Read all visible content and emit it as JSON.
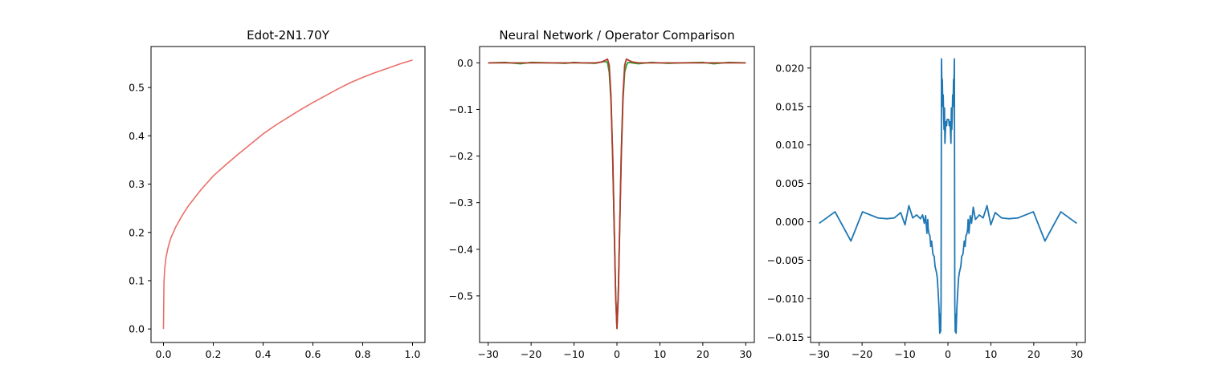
{
  "chart_data": [
    {
      "type": "line",
      "title": "Edot-2N1.70Y",
      "xlabel": "",
      "ylabel": "",
      "xlim": [
        -0.05,
        1.05
      ],
      "ylim": [
        -0.028,
        0.585
      ],
      "xticks": [
        0.0,
        0.2,
        0.4,
        0.6,
        0.8,
        1.0
      ],
      "xtick_labels": [
        "0.0",
        "0.2",
        "0.4",
        "0.6",
        "0.8",
        "1.0"
      ],
      "yticks": [
        0.0,
        0.1,
        0.2,
        0.3,
        0.4,
        0.5
      ],
      "ytick_labels": [
        "0.0",
        "0.1",
        "0.2",
        "0.3",
        "0.4",
        "0.5"
      ],
      "grid": false,
      "series": [
        {
          "color": "#e8605a",
          "x": [
            0.0,
            0.002,
            0.005,
            0.01,
            0.02,
            0.03,
            0.05,
            0.075,
            0.1,
            0.15,
            0.2,
            0.25,
            0.3,
            0.35,
            0.4,
            0.45,
            0.5,
            0.55,
            0.6,
            0.65,
            0.7,
            0.75,
            0.8,
            0.85,
            0.9,
            0.95,
            1.0
          ],
          "y": [
            0.0,
            0.098,
            0.125,
            0.148,
            0.172,
            0.189,
            0.212,
            0.235,
            0.255,
            0.288,
            0.317,
            0.34,
            0.362,
            0.383,
            0.404,
            0.422,
            0.438,
            0.454,
            0.469,
            0.483,
            0.497,
            0.51,
            0.521,
            0.531,
            0.54,
            0.549,
            0.557
          ]
        }
      ]
    },
    {
      "type": "line",
      "title": "Neural Network / Operator Comparison",
      "xlabel": "",
      "ylabel": "",
      "xlim": [
        -32,
        32
      ],
      "ylim": [
        -0.6,
        0.035
      ],
      "xticks": [
        -30,
        -20,
        -10,
        0,
        10,
        20,
        30
      ],
      "xtick_labels": [
        "−30",
        "−20",
        "−10",
        "0",
        "10",
        "20",
        "30"
      ],
      "yticks": [
        0.0,
        -0.1,
        -0.2,
        -0.3,
        -0.4,
        -0.5
      ],
      "ytick_labels": [
        "0.0",
        "−0.1",
        "−0.2",
        "−0.3",
        "−0.4",
        "−0.5"
      ],
      "grid": false,
      "series": [
        {
          "color": "#2ca02c",
          "x": [
            -30,
            -26,
            -22.5,
            -20,
            -15,
            -12,
            -10,
            -8,
            -5,
            -3.5,
            -2.6,
            -2.2,
            -1.8,
            -1.4,
            -1.0,
            -0.6,
            -0.3,
            0,
            0.3,
            0.6,
            1.0,
            1.4,
            1.8,
            2.2,
            2.6,
            3.5,
            5,
            8,
            10,
            12,
            15,
            20,
            22.5,
            26,
            30
          ],
          "y": [
            0.0,
            0.001,
            -0.002,
            0.001,
            0.0,
            -0.001,
            0.001,
            0.0,
            -0.001,
            0.002,
            0.003,
            0.0,
            -0.02,
            -0.08,
            -0.2,
            -0.37,
            -0.5,
            -0.568,
            -0.5,
            -0.37,
            -0.2,
            -0.08,
            -0.02,
            -0.005,
            0.001,
            0.0,
            -0.002,
            0.001,
            0.0,
            -0.001,
            0.0,
            0.001,
            -0.002,
            0.001,
            0.0
          ]
        },
        {
          "color": "#b03a2e",
          "x": [
            -30,
            -26,
            -22.5,
            -20,
            -15,
            -12,
            -10,
            -8,
            -5,
            -3.5,
            -2.6,
            -2.2,
            -1.8,
            -1.4,
            -1.0,
            -0.6,
            -0.3,
            0,
            0.3,
            0.6,
            1.0,
            1.4,
            1.8,
            2.2,
            2.6,
            3.5,
            5,
            8,
            10,
            12,
            15,
            20,
            22.5,
            26,
            30
          ],
          "y": [
            0.0,
            0.0,
            0.0,
            0.0,
            0.0,
            0.0,
            0.0,
            0.0,
            0.0,
            0.002,
            0.006,
            0.008,
            -0.005,
            -0.07,
            -0.2,
            -0.37,
            -0.5,
            -0.57,
            -0.5,
            -0.37,
            -0.2,
            -0.07,
            -0.005,
            0.008,
            0.006,
            0.002,
            0.0,
            0.0,
            0.0,
            0.0,
            0.0,
            0.0,
            0.0,
            0.0,
            0.0
          ]
        }
      ]
    },
    {
      "type": "line",
      "title": "",
      "xlabel": "",
      "ylabel": "",
      "xlim": [
        -32,
        32
      ],
      "ylim": [
        -0.0157,
        0.0228
      ],
      "xticks": [
        -30,
        -20,
        -10,
        0,
        10,
        20,
        30
      ],
      "xtick_labels": [
        "−30",
        "−20",
        "−10",
        "0",
        "10",
        "20",
        "30"
      ],
      "yticks": [
        0.02,
        0.015,
        0.01,
        0.005,
        0.0,
        -0.005,
        -0.01,
        -0.015
      ],
      "ytick_labels": [
        "0.020",
        "0.015",
        "0.010",
        "0.005",
        "0.000",
        "−0.005",
        "−0.010",
        "−0.015"
      ],
      "grid": false,
      "series": [
        {
          "color": "#1f77b4",
          "x": [
            -30,
            -26.3,
            -22.6,
            -19.9,
            -16.3,
            -14.2,
            -12.5,
            -11.0,
            -10.0,
            -9.1,
            -8.2,
            -7.3,
            -6.4,
            -5.9,
            -5.5,
            -5.2,
            -4.9,
            -4.7,
            -4.6,
            -4.4,
            -4.2,
            -4.0,
            -3.8,
            -3.5,
            -3.2,
            -3.0,
            -2.7,
            -2.5,
            -2.3,
            -2.1,
            -1.9,
            -1.8,
            -1.7,
            -1.6,
            -1.5,
            -1.4,
            -1.3,
            -1.2,
            -1.1,
            -1.0,
            -0.9,
            -0.8,
            -0.7,
            -0.5,
            -0.3,
            -0.2,
            0.2,
            0.3,
            0.5,
            0.7,
            0.8,
            0.9,
            1.0,
            1.1,
            1.2,
            1.3,
            1.4,
            1.5,
            1.6,
            1.7,
            1.8,
            1.9,
            2.1,
            2.3,
            2.5,
            2.7,
            3.0,
            3.2,
            3.5,
            3.8,
            4.0,
            4.2,
            4.4,
            4.6,
            4.7,
            4.9,
            5.2,
            5.5,
            5.9,
            6.4,
            7.3,
            8.2,
            9.1,
            10.0,
            11.0,
            12.5,
            14.2,
            16.3,
            19.9,
            22.6,
            26.3,
            30
          ],
          "y": [
            -0.0002,
            0.0013,
            -0.0025,
            0.0013,
            0.0005,
            0.0004,
            0.0005,
            0.0012,
            -0.0004,
            0.0021,
            0.0005,
            0.0009,
            0.0004,
            0.0009,
            -0.0002,
            0.0008,
            -0.0015,
            0.0003,
            -0.0009,
            -0.0016,
            -0.0018,
            -0.0032,
            -0.0025,
            -0.0042,
            -0.0045,
            -0.0058,
            -0.0065,
            -0.0072,
            -0.0089,
            -0.011,
            -0.0145,
            -0.012,
            -0.0143,
            -0.0105,
            0.0212,
            0.0175,
            0.0185,
            0.015,
            0.0165,
            0.0135,
            0.012,
            0.0148,
            0.0102,
            0.013,
            0.0125,
            0.0133,
            0.0133,
            0.0125,
            0.013,
            0.0102,
            0.0148,
            0.012,
            0.0135,
            0.0165,
            0.015,
            0.0185,
            0.0175,
            0.0212,
            -0.0105,
            -0.0143,
            -0.012,
            -0.0145,
            -0.011,
            -0.0089,
            -0.0072,
            -0.0065,
            -0.0058,
            -0.0045,
            -0.0042,
            -0.0025,
            -0.0032,
            -0.0018,
            -0.0016,
            -0.0009,
            0.0003,
            -0.0015,
            0.0008,
            -0.0002,
            0.0019,
            0.0003,
            0.0009,
            0.0005,
            0.0021,
            -0.0004,
            0.0012,
            0.0005,
            0.0004,
            0.0005,
            0.0013,
            -0.0025,
            0.0013,
            -0.0002
          ]
        }
      ]
    }
  ]
}
